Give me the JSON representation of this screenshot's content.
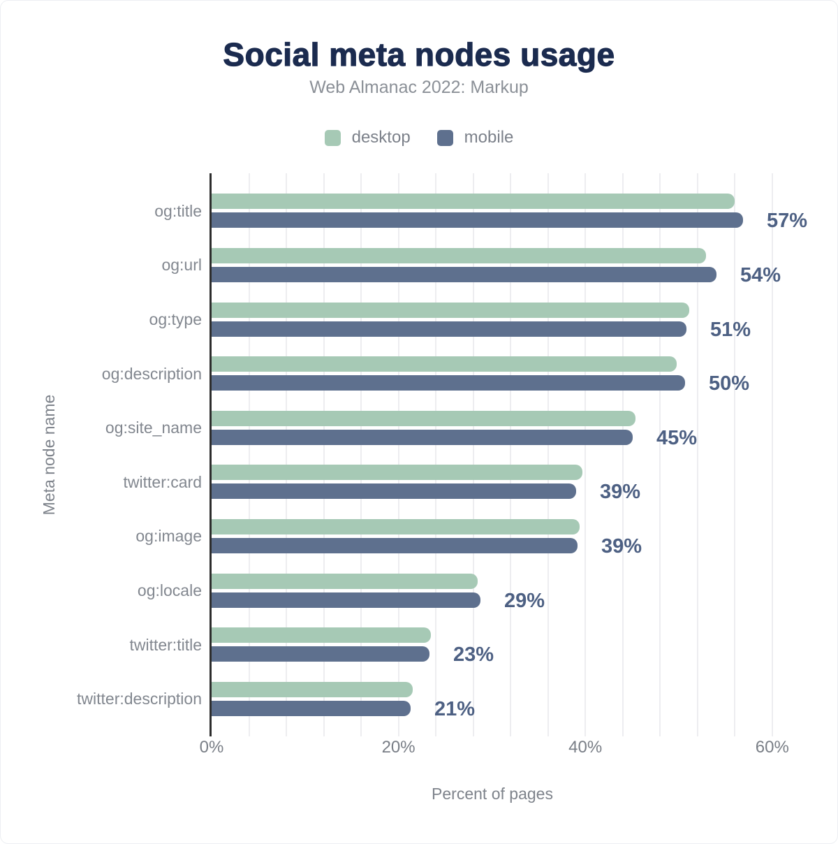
{
  "title": "Social meta nodes usage",
  "subtitle": "Web Almanac 2022: Markup",
  "legend": {
    "items": [
      {
        "label": "desktop",
        "color": "#a6c9b5"
      },
      {
        "label": "mobile",
        "color": "#5e708e"
      }
    ]
  },
  "axes": {
    "x_title": "Percent of pages",
    "y_title": "Meta node name",
    "x_ticks": [
      {
        "label": "0%",
        "value": 0
      },
      {
        "label": "20%",
        "value": 20
      },
      {
        "label": "40%",
        "value": 40
      },
      {
        "label": "60%",
        "value": 60
      }
    ],
    "x_max": 64,
    "grid_step_pct": 4
  },
  "chart_data": {
    "type": "bar",
    "orientation": "horizontal",
    "title": "Social meta nodes usage",
    "subtitle": "Web Almanac 2022: Markup",
    "xlabel": "Percent of pages",
    "ylabel": "Meta node name",
    "xlim": [
      0,
      64
    ],
    "grid": "vertical gridlines every 4%, ticks every 20%",
    "legend_position": "top",
    "categories": [
      "og:title",
      "og:url",
      "og:type",
      "og:description",
      "og:site_name",
      "twitter:card",
      "og:image",
      "og:locale",
      "twitter:title",
      "twitter:description"
    ],
    "series": [
      {
        "name": "desktop",
        "color": "#a6c9b5",
        "values": [
          56.0,
          52.9,
          51.1,
          49.8,
          45.4,
          39.7,
          39.4,
          28.5,
          23.5,
          21.5
        ]
      },
      {
        "name": "mobile",
        "color": "#5e708e",
        "values": [
          56.9,
          54.0,
          50.8,
          50.7,
          45.1,
          39.0,
          39.2,
          28.8,
          23.3,
          21.3
        ]
      }
    ],
    "value_labels": [
      "57%",
      "54%",
      "51%",
      "50%",
      "45%",
      "39%",
      "39%",
      "29%",
      "23%",
      "21%"
    ]
  },
  "colors": {
    "background": "#ffffff",
    "title": "#1b2b4f",
    "subtitle": "#8b9097",
    "legend_label": "#7c818a",
    "category_label": "#82878f",
    "tick_label": "#797e86",
    "axis_title": "#7e838b",
    "axis_line": "#2d2d2d",
    "gridline": "#ededf0",
    "value_label": "#4d6083",
    "desktop_bar": "#a6c9b5",
    "mobile_bar": "#5e708e"
  }
}
